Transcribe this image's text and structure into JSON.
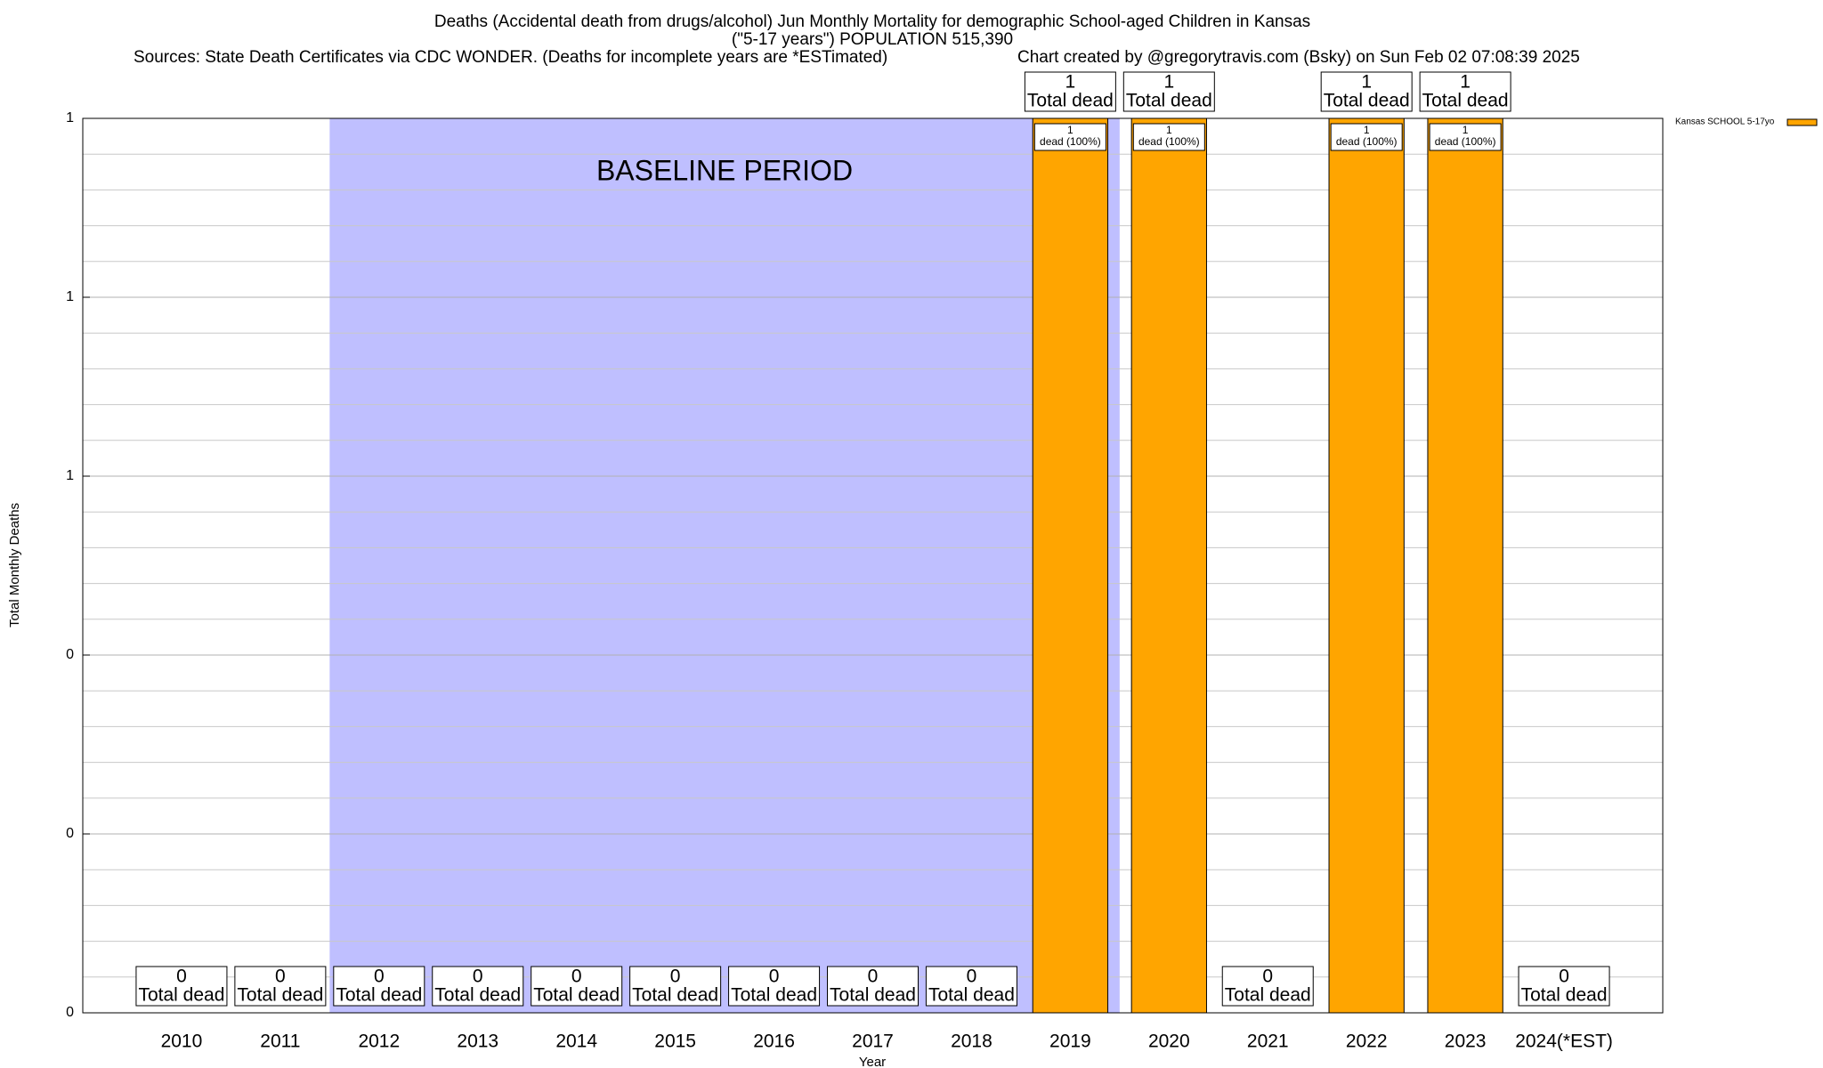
{
  "chart_data": {
    "type": "bar",
    "title": "Deaths (Accidental death from drugs/alcohol) Jun Monthly Mortality for demographic School-aged Children in Kansas",
    "subtitle": "(\"5-17 years\") POPULATION 515,390",
    "source": "Sources: State Death Certificates via CDC WONDER. (Deaths for incomplete years are *ESTimated)",
    "credit": "Chart created by @gregorytravis.com (Bsky) on Sun Feb 02 07:08:39 2025",
    "x_label": "Year",
    "y_label": "Total Monthly Deaths",
    "categories": [
      "2010",
      "2011",
      "2012",
      "2013",
      "2014",
      "2015",
      "2016",
      "2017",
      "2018",
      "2019",
      "2020",
      "2021",
      "2022",
      "2023",
      "2024(*EST)"
    ],
    "series": [
      {
        "name": "Kansas SCHOOL 5-17yo",
        "color": "#ffa500",
        "values": [
          0,
          0,
          0,
          0,
          0,
          0,
          0,
          0,
          0,
          1,
          1,
          0,
          1,
          1,
          0
        ]
      }
    ],
    "total_label": "Total dead",
    "inner_labels": [
      null,
      null,
      null,
      null,
      null,
      null,
      null,
      null,
      null,
      "dead (100%)",
      "dead (100%)",
      null,
      "dead (100%)",
      "dead (100%)",
      null
    ],
    "baseline": {
      "label": "BASELINE PERIOD",
      "start": "2012",
      "end": "2019",
      "color": "#bfbfff"
    },
    "ylim": [
      0,
      1
    ],
    "yticks": [
      {
        "value": 0,
        "label": "0"
      },
      {
        "value": 0.2,
        "label": "0"
      },
      {
        "value": 0.4,
        "label": "0"
      },
      {
        "value": 0.6,
        "label": "1"
      },
      {
        "value": 0.8,
        "label": "1"
      },
      {
        "value": 1,
        "label": "1"
      }
    ],
    "minor_yticks": [
      0.04,
      0.08,
      0.12,
      0.16,
      0.24,
      0.28,
      0.32,
      0.36,
      0.44,
      0.48,
      0.52,
      0.56,
      0.64,
      0.68,
      0.72,
      0.76,
      0.84,
      0.88,
      0.92,
      0.96
    ],
    "grid": true,
    "legend": "top-right"
  }
}
